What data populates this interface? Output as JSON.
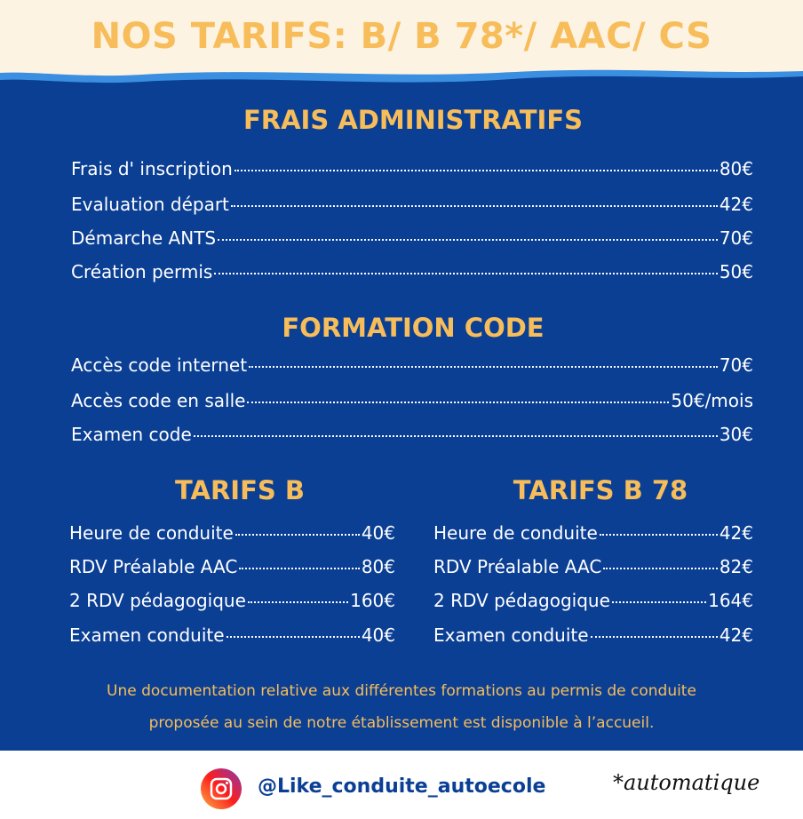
{
  "header": {
    "title": "NOS TARIFS: B/ B 78*/ AAC/ CS"
  },
  "sections": [
    {
      "title": "FRAIS ADMINISTRATIFS",
      "items": [
        {
          "label": "Frais d' inscription",
          "price": "80€"
        },
        {
          "label": "Evaluation départ",
          "price": "42€"
        },
        {
          "label": "Démarche ANTS",
          "price": "70€"
        },
        {
          "label": "Création permis",
          "price": "50€"
        }
      ]
    },
    {
      "title": "FORMATION CODE",
      "items": [
        {
          "label": "Accès code internet",
          "price": "70€"
        },
        {
          "label": "Accès code en salle",
          "price": "50€/mois"
        },
        {
          "label": "Examen code",
          "price": "30€"
        }
      ]
    }
  ],
  "columns": [
    {
      "title": "TARIFS B",
      "items": [
        {
          "label": "Heure de conduite",
          "price": "40€"
        },
        {
          "label": "RDV Préalable AAC",
          "price": "80€"
        },
        {
          "label": "2 RDV pédagogique",
          "price": "160€"
        },
        {
          "label": "Examen conduite",
          "price": "40€"
        }
      ]
    },
    {
      "title": "TARIFS B 78",
      "items": [
        {
          "label": "Heure de conduite",
          "price": "42€"
        },
        {
          "label": "RDV Préalable AAC",
          "price": "82€"
        },
        {
          "label": "2 RDV pédagogique",
          "price": "164€"
        },
        {
          "label": "Examen conduite",
          "price": "42€"
        }
      ]
    }
  ],
  "note": [
    "Une documentation relative aux différentes formations au permis de conduite",
    "proposée au sein de notre établissement est disponible à l’accueil."
  ],
  "footer": {
    "handle": "@Like_conduite_autoecole",
    "footnote": "*automatique"
  }
}
